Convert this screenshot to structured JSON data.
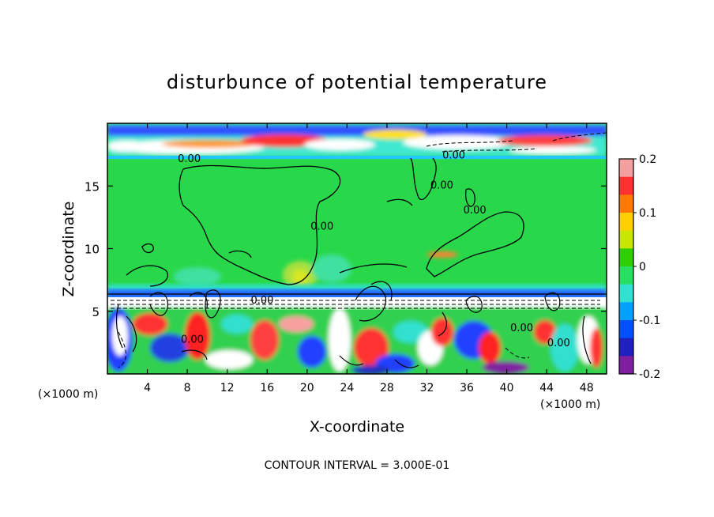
{
  "chart_data": {
    "type": "heatmap",
    "title": "disturbunce of potential temperature",
    "xlabel": "X-coordinate",
    "ylabel": "Z-coordinate",
    "x_unit_left": "(×1000 m)",
    "x_unit_right": "(×1000 m)",
    "footer": "CONTOUR INTERVAL = 3.000E-01",
    "xlim": [
      0,
      50
    ],
    "ylim": [
      0,
      20
    ],
    "x_ticks": [
      4,
      8,
      12,
      16,
      20,
      24,
      28,
      32,
      36,
      40,
      44,
      48
    ],
    "y_ticks": [
      5,
      10,
      15
    ],
    "colorbar": {
      "range": [
        -0.2,
        0.2
      ],
      "ticks": [
        "0.2",
        "0.1",
        "0",
        "-0.1",
        "-0.2"
      ],
      "colors": [
        "#f5a0a0",
        "#ff3030",
        "#ff7a00",
        "#ffd000",
        "#c8e600",
        "#30d000",
        "#28e060",
        "#30e0d0",
        "#00a0ff",
        "#0050ff",
        "#2020c0",
        "#8020a0"
      ]
    },
    "contour_labels": [
      {
        "text": "0.00",
        "x": 8.2,
        "z": 16.9
      },
      {
        "text": "0.00",
        "x": 34.7,
        "z": 17.2
      },
      {
        "text": "0.00",
        "x": 21.5,
        "z": 11.5
      },
      {
        "text": "0.00",
        "x": 33.5,
        "z": 14.8
      },
      {
        "text": "0.00",
        "x": 36.8,
        "z": 12.8
      },
      {
        "text": "0.00",
        "x": 15.5,
        "z": 5.6
      },
      {
        "text": "0.00",
        "x": 8.5,
        "z": 2.5
      },
      {
        "text": "0.00",
        "x": 41.5,
        "z": 3.4
      },
      {
        "text": "0.00",
        "x": 45.2,
        "z": 2.2
      }
    ],
    "regions": {
      "background_mid_troposphere": 0.0,
      "upper_band_z": [
        17.2,
        19.8
      ],
      "lower_turbulent_layer_z": [
        0,
        6.5
      ],
      "inversion_line_z": 5.5
    }
  }
}
